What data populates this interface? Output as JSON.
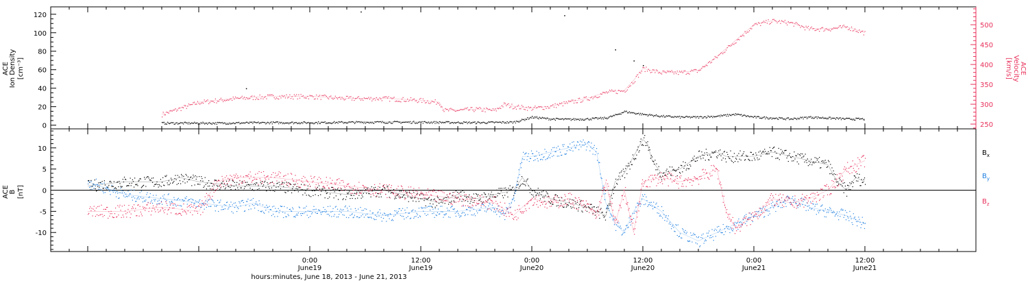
{
  "chart_data": [
    {
      "type": "scatter",
      "panel": "top",
      "ylabel_left": [
        "ACE",
        "Ion Density",
        "[cm⁻³]"
      ],
      "ylabel_right": [
        "ACE",
        "Velocity",
        "[km/s]"
      ],
      "ylim_left": [
        -4,
        128
      ],
      "ylim_right": [
        238,
        545
      ],
      "yticks_left": [
        0,
        20,
        40,
        60,
        80,
        100,
        120
      ],
      "yticks_right": [
        250,
        300,
        350,
        400,
        450,
        500
      ],
      "colors": {
        "density": "#000000",
        "velocity": "#e8305a"
      },
      "series": [
        {
          "name": "",
          "axis": "left",
          "color": "#000000",
          "x": [
            -16,
            -10,
            -4,
            0,
            6,
            12,
            18,
            22,
            23,
            24,
            26,
            28,
            30,
            32,
            33,
            34,
            36,
            38,
            40,
            42,
            44,
            46,
            48,
            50,
            52,
            54,
            56,
            58,
            60
          ],
          "y": [
            2.5,
            2.5,
            3,
            3,
            3.5,
            3.5,
            3,
            3.5,
            6,
            9,
            7,
            6.5,
            7,
            8,
            11,
            15,
            12,
            10,
            9,
            9,
            10,
            12,
            9,
            8,
            7,
            9,
            8,
            7,
            7
          ]
        },
        {
          "name": "",
          "axis": "right",
          "color": "#e8305a",
          "x": [
            -16,
            -14,
            -12,
            -8,
            -4,
            0,
            4,
            8,
            12,
            14,
            14.5,
            16,
            18,
            20,
            21,
            22,
            24,
            26,
            28,
            30,
            32,
            34,
            35,
            36,
            37,
            38,
            40,
            42,
            44,
            46,
            48,
            50,
            52,
            54,
            56,
            58,
            60
          ],
          "y": [
            275,
            290,
            305,
            315,
            320,
            320,
            315,
            315,
            310,
            305,
            285,
            285,
            288,
            285,
            300,
            295,
            290,
            295,
            305,
            315,
            330,
            335,
            360,
            390,
            385,
            380,
            380,
            385,
            420,
            460,
            500,
            510,
            505,
            490,
            490,
            495,
            480
          ]
        }
      ],
      "outliers": [
        {
          "x": -6.9,
          "y": 40,
          "axis": "left"
        },
        {
          "x": 5.5,
          "y": 123,
          "axis": "left"
        },
        {
          "x": 27.5,
          "y": 119,
          "axis": "left"
        },
        {
          "x": 33,
          "y": 82,
          "axis": "left"
        },
        {
          "x": 35,
          "y": 70,
          "axis": "left"
        },
        {
          "x": 36,
          "y": 65,
          "axis": "left"
        }
      ]
    },
    {
      "type": "scatter",
      "panel": "bottom",
      "ylabel_left": [
        "ACE",
        "B",
        "[nT]"
      ],
      "ylim": [
        -14.5,
        14.5
      ],
      "yticks": [
        -10,
        -5,
        0,
        5,
        10
      ],
      "legend_position": "right",
      "colors": {
        "Bx": "#000000",
        "By": "#1f7fe0",
        "Bz": "#e8305a"
      },
      "legend": [
        {
          "label": "B",
          "sub": "x",
          "color": "#000000"
        },
        {
          "label": "B",
          "sub": "y",
          "color": "#1f7fe0"
        },
        {
          "label": "B",
          "sub": "z",
          "color": "#e8305a"
        }
      ],
      "series": [
        {
          "name": "B",
          "sub": "x",
          "color": "#000000",
          "x": [
            -24,
            -20,
            -16,
            -14,
            -12,
            -8,
            -4,
            0,
            4,
            8,
            10,
            12,
            14,
            16,
            18,
            20,
            22,
            23,
            24,
            25,
            26,
            28,
            30,
            32,
            33,
            34,
            35,
            36,
            36.5,
            37,
            38,
            40,
            42,
            44,
            45,
            46,
            48,
            50,
            52,
            54,
            56,
            57,
            58,
            59,
            60
          ],
          "y": [
            1,
            2,
            2,
            3,
            2,
            1,
            1,
            0,
            -1,
            0,
            -1,
            -2,
            -3,
            -1,
            -2,
            -1,
            0,
            3,
            0,
            -1,
            -2,
            -3,
            -4,
            -6,
            2,
            4,
            8,
            12,
            11,
            7,
            4,
            5,
            8,
            9,
            8,
            8,
            8,
            9,
            8,
            7,
            6,
            2,
            0,
            3,
            2
          ]
        },
        {
          "name": "B",
          "sub": "y",
          "color": "#1f7fe0",
          "x": [
            -24,
            -20,
            -16,
            -12,
            -8,
            -6,
            -4,
            0,
            4,
            8,
            12,
            16,
            20,
            21,
            22,
            23,
            24,
            26,
            28,
            30,
            31,
            32,
            33,
            34,
            35,
            36,
            38,
            40,
            42,
            44,
            46,
            48,
            50,
            52,
            54,
            56,
            58,
            59,
            60
          ],
          "y": [
            2,
            -1,
            -2,
            -3,
            -4,
            -3,
            -5,
            -5,
            -5,
            -6,
            -5,
            -5,
            -4,
            -6,
            -2,
            8,
            8,
            9,
            10,
            11,
            9,
            -3,
            -8,
            -10,
            -5,
            -2,
            -5,
            -10,
            -12,
            -10,
            -8,
            -6,
            -4,
            -2,
            -4,
            -5,
            -6,
            -7,
            -8
          ]
        },
        {
          "name": "B",
          "sub": "z",
          "color": "#e8305a",
          "x": [
            -24,
            -20,
            -16,
            -12,
            -10,
            -8,
            -4,
            0,
            4,
            8,
            12,
            16,
            20,
            22,
            24,
            26,
            28,
            30,
            31,
            32,
            33,
            34,
            35,
            36,
            38,
            40,
            42,
            44,
            45,
            46,
            48,
            50,
            52,
            54,
            56,
            58,
            60
          ],
          "y": [
            -5,
            -5,
            -4,
            -5,
            2,
            3,
            3,
            2,
            1,
            0,
            -1,
            -2,
            -3,
            -6,
            -2,
            -3,
            -2,
            -4,
            -6,
            2,
            -8,
            0,
            -10,
            2,
            3,
            2,
            3,
            5,
            -5,
            -9,
            -6,
            -2,
            -3,
            -2,
            0,
            5,
            7
          ]
        }
      ]
    }
  ],
  "x_axis": {
    "range_hours": [
      -28,
      72
    ],
    "major_ticks": [
      {
        "hour": 0,
        "time": "0:00",
        "date": "June19"
      },
      {
        "hour": 12,
        "time": "12:00",
        "date": "June19"
      },
      {
        "hour": 24,
        "time": "0:00",
        "date": "June20"
      },
      {
        "hour": 36,
        "time": "12:00",
        "date": "June20"
      },
      {
        "hour": 48,
        "time": "0:00",
        "date": "June21"
      },
      {
        "hour": 60,
        "time": "12:00",
        "date": "June21"
      }
    ],
    "xlabel": "hours:minutes, June 18, 2013 - June 21, 2013"
  }
}
